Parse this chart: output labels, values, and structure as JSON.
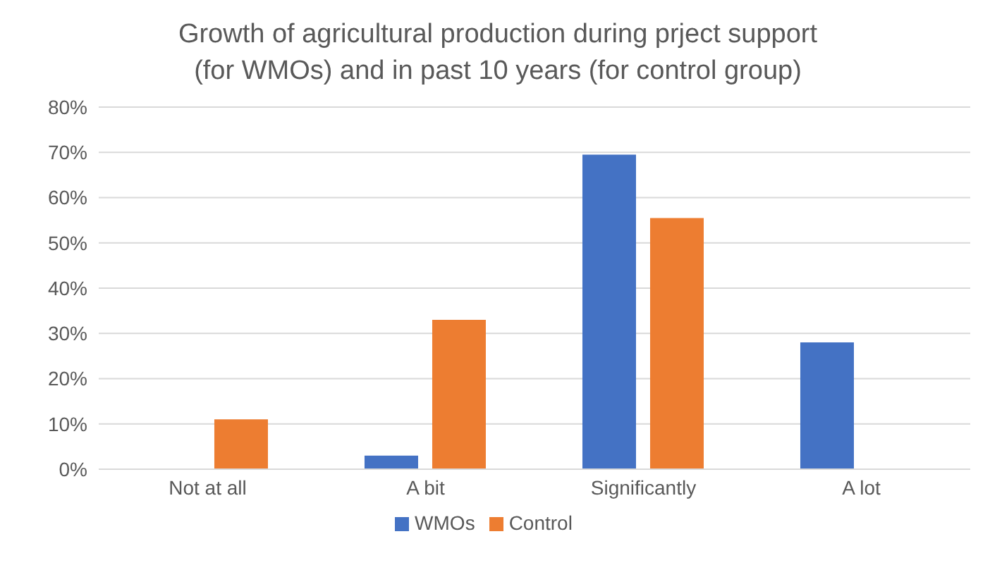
{
  "chart_data": {
    "type": "bar",
    "title": "Growth of agricultural production during prject support (for WMOs) and in past 10 years (for control group)",
    "categories": [
      "Not at all",
      "A bit",
      "Significantly",
      "A lot"
    ],
    "series": [
      {
        "name": "WMOs",
        "color": "#4472c4",
        "values": [
          0,
          3,
          69.5,
          28
        ]
      },
      {
        "name": "Control",
        "color": "#ed7d31",
        "values": [
          11,
          33,
          55.5,
          0
        ]
      }
    ],
    "ylim": [
      0,
      80
    ],
    "yticks": [
      {
        "value": 0,
        "label": "0%"
      },
      {
        "value": 10,
        "label": "10%"
      },
      {
        "value": 20,
        "label": "20%"
      },
      {
        "value": 30,
        "label": "30%"
      },
      {
        "value": 40,
        "label": "40%"
      },
      {
        "value": 50,
        "label": "50%"
      },
      {
        "value": 60,
        "label": "60%"
      },
      {
        "value": 70,
        "label": "70%"
      },
      {
        "value": 80,
        "label": "80%"
      }
    ],
    "grid": "y",
    "legend": "bottom"
  }
}
